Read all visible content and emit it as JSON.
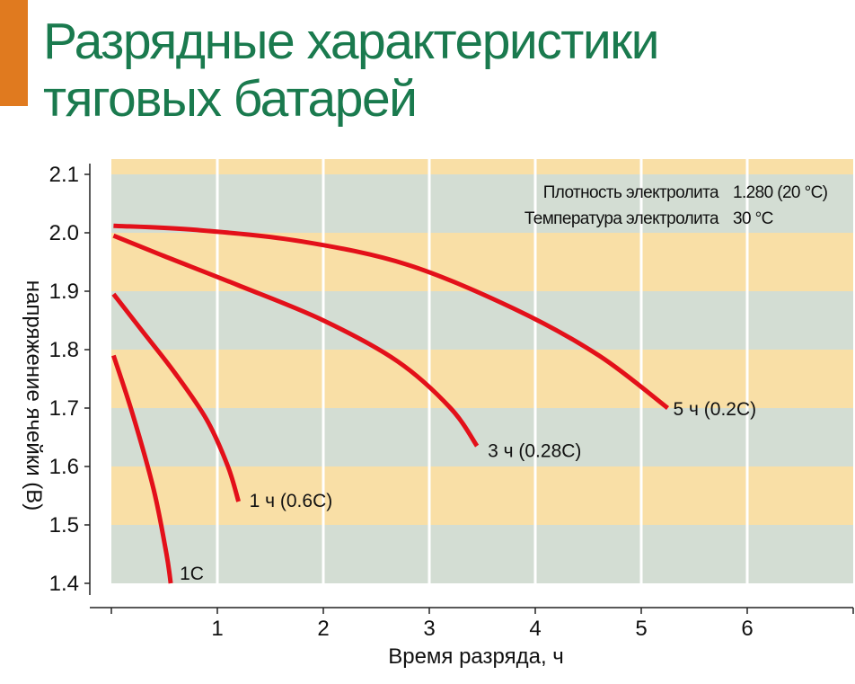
{
  "title_lines": [
    "Разрядные характеристики",
    "тяговых батарей"
  ],
  "colors": {
    "title": "#1a7a4e",
    "accent": "#e07a1f",
    "band_yellow": "#f9dfa6",
    "band_green": "#d3ddd3",
    "curve": "#e3101a",
    "axis": "#222222"
  },
  "chart_data": {
    "type": "line",
    "xlabel": "Время разряда, ч",
    "ylabel": "напряжение ячейки (В)",
    "xlim": [
      0,
      7
    ],
    "ylim": [
      1.4,
      2.12
    ],
    "x_ticks": [
      "1",
      "2",
      "3",
      "4",
      "5",
      "6"
    ],
    "y_ticks": [
      "2.1",
      "2.0",
      "1.9",
      "1.8",
      "1.7",
      "1.6",
      "1.5",
      "1.4"
    ],
    "grid": true,
    "info": [
      {
        "label": "Плотность электролита",
        "value": "1.280 (20 °C)"
      },
      {
        "label": "Температура электролита",
        "value": "30 °C"
      }
    ],
    "series": [
      {
        "name": "1C",
        "label": "1C",
        "x": [
          0.02,
          0.2,
          0.4,
          0.52,
          0.56
        ],
        "y": [
          1.79,
          1.69,
          1.56,
          1.45,
          1.4
        ]
      },
      {
        "name": "1 ч (0.6C)",
        "label": "1 ч   (0.6C)",
        "x": [
          0.02,
          0.3,
          0.6,
          0.9,
          1.1,
          1.2
        ],
        "y": [
          1.895,
          1.83,
          1.76,
          1.68,
          1.6,
          1.54
        ]
      },
      {
        "name": "3 ч (0.28C)",
        "label": "3 ч   (0.28C)",
        "x": [
          0.02,
          0.5,
          1.2,
          2.0,
          2.7,
          3.2,
          3.45
        ],
        "y": [
          1.995,
          1.96,
          1.91,
          1.85,
          1.78,
          1.7,
          1.635
        ]
      },
      {
        "name": "5 ч (0.2C)",
        "label": "5 ч   (0.2C)",
        "x": [
          0.02,
          0.8,
          1.8,
          2.8,
          3.8,
          4.6,
          5.25
        ],
        "y": [
          2.012,
          2.005,
          1.985,
          1.945,
          1.87,
          1.79,
          1.7
        ]
      }
    ]
  }
}
